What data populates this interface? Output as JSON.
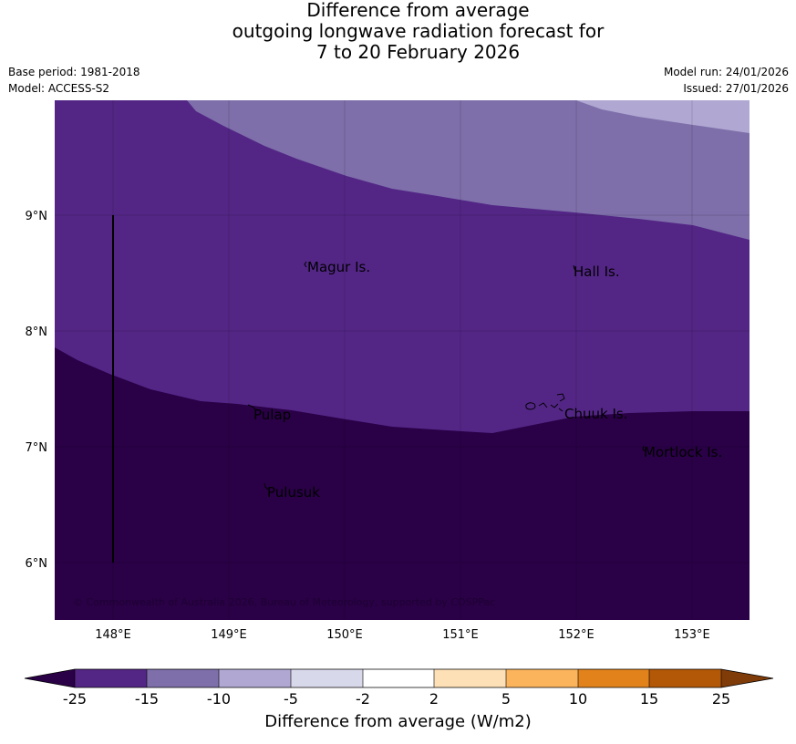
{
  "header": {
    "title_lines": [
      "Difference from average",
      "outgoing longwave radiation forecast for",
      "7 to 20 February 2026"
    ],
    "base_period": "Base period: 1981-2018",
    "model": "Model: ACCESS-S2",
    "model_run": "Model run: 24/01/2026",
    "issued": "Issued: 27/01/2026"
  },
  "map": {
    "lon_ticks": [
      "148°E",
      "149°E",
      "150°E",
      "151°E",
      "152°E",
      "153°E"
    ],
    "lat_ticks": [
      "9°N",
      "8°N",
      "7°N",
      "6°N"
    ],
    "places": [
      "Magur Is.",
      "Hall Is.",
      "Pulap",
      "Chuuk Is.",
      "Mortlock Is.",
      "Pulusuk"
    ],
    "copyright": "© Commonwealth of Australia 2026, Bureau of Meteorology, supported by COSPPac",
    "colors": {
      "lt_m25": "#2a0047",
      "m25_m15": "#532686",
      "m15_m10": "#7e6faa",
      "m10_m5": "#b0a8d2",
      "m5_m2": "#d8d8eb",
      "m2_2": "#ffffff",
      "c2_5": "#fde0b6",
      "c5_10": "#fbb35c",
      "c10_15": "#e2821a",
      "c15_25": "#b35806",
      "gt_25": "#7f3b08"
    }
  },
  "colorbar": {
    "ticks": [
      "-25",
      "-15",
      "-10",
      "-5",
      "-2",
      "2",
      "5",
      "10",
      "15",
      "25"
    ],
    "label": "Difference from average (W/m2)"
  }
}
